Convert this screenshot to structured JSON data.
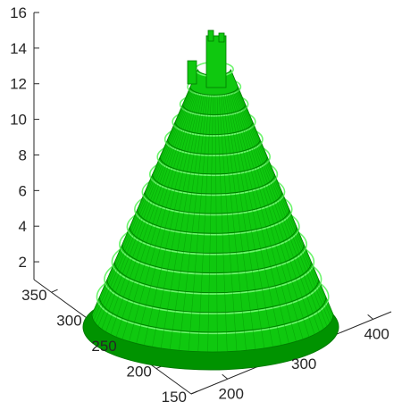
{
  "chart_data": {
    "type": "surface-3d",
    "title": "",
    "xlabel": "",
    "ylabel": "",
    "zlabel": "",
    "grid": false,
    "colormap": "green",
    "z_axis": {
      "ticks": [
        2,
        4,
        6,
        8,
        10,
        12,
        14,
        16
      ],
      "range": [
        1,
        16
      ]
    },
    "y_axis": {
      "ticks": [
        150,
        200,
        250,
        300,
        350
      ],
      "range": [
        150,
        375
      ]
    },
    "x_axis": {
      "ticks": [
        200,
        300,
        400
      ],
      "range": [
        150,
        425
      ]
    },
    "surface": {
      "shape": "stepped-cone",
      "base_z": 1,
      "peak_z": 15,
      "levels": [
        1,
        2,
        3,
        4,
        5,
        6,
        7,
        8,
        9,
        10,
        11,
        12,
        13,
        14,
        15
      ],
      "colors": {
        "face": "#0fc80f",
        "edge": "#007a00",
        "highlight": "#6ef56e",
        "shadow": "#009300"
      }
    }
  }
}
